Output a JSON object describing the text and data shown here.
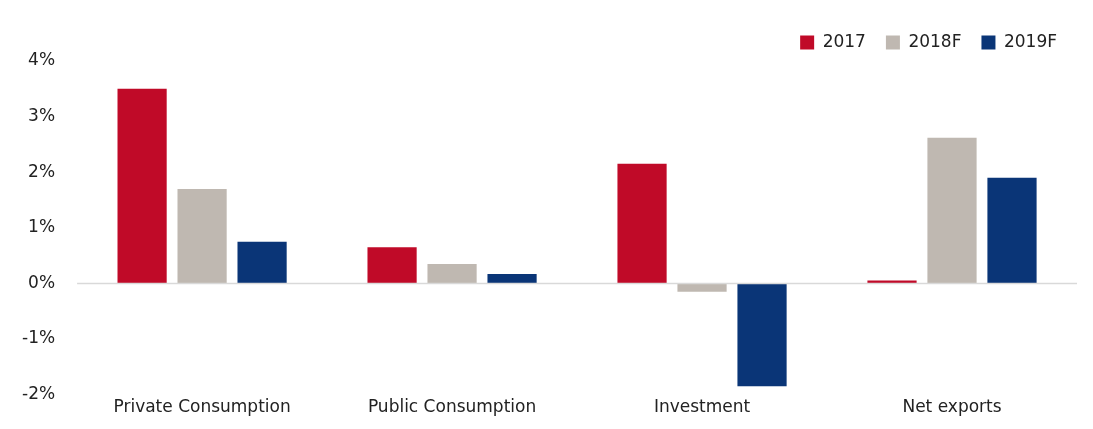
{
  "chart_data": {
    "type": "bar",
    "categories": [
      "Private Consumption",
      "Public Consumption",
      "Investment",
      "Net exports"
    ],
    "series": [
      {
        "name": "2017",
        "color": "#c00a28",
        "values": [
          3.5,
          0.65,
          2.15,
          0.05
        ]
      },
      {
        "name": "2018F",
        "color": "#bfb8b1",
        "values": [
          1.7,
          0.35,
          -0.15,
          2.62
        ]
      },
      {
        "name": "2019F",
        "color": "#0a3577",
        "values": [
          0.75,
          0.17,
          -1.85,
          1.9
        ]
      }
    ],
    "ylim": [
      -2,
      4
    ],
    "yticks": [
      {
        "value": -2,
        "label": "-2%"
      },
      {
        "value": -1,
        "label": "-1%"
      },
      {
        "value": 0,
        "label": "0%"
      },
      {
        "value": 1,
        "label": "1%"
      },
      {
        "value": 2,
        "label": "2%"
      },
      {
        "value": 3,
        "label": "3%"
      },
      {
        "value": 4,
        "label": "4%"
      }
    ],
    "grid": false,
    "legend": "top right",
    "ref_lines": [
      {
        "axis": "y",
        "value": 0,
        "color": "#d9d9d9"
      }
    ]
  }
}
